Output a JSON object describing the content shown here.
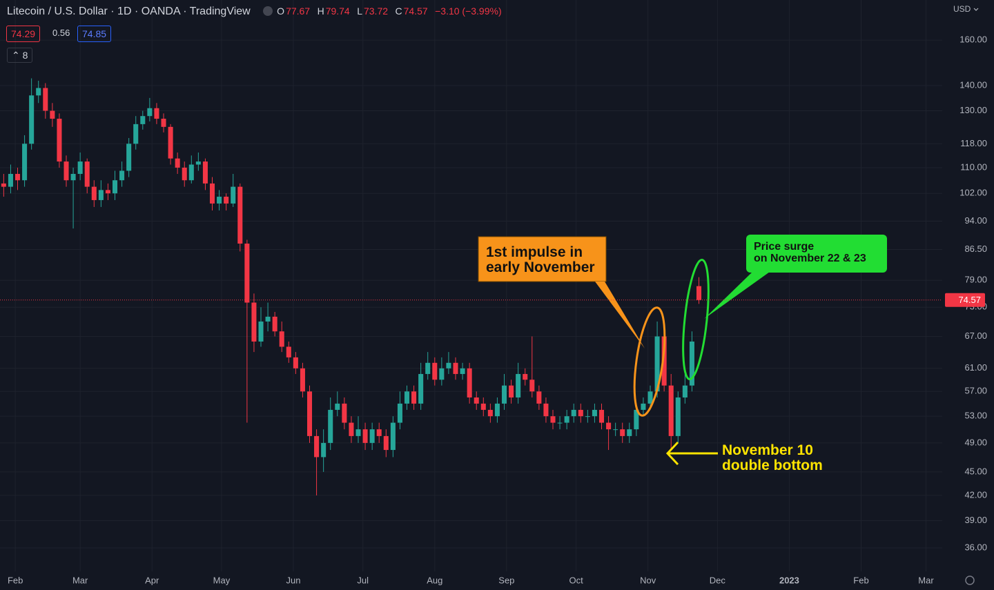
{
  "chart_data": {
    "type": "candlestick",
    "title": "Litecoin / U.S. Dollar · 1D · OANDA · TradingView",
    "ohlc": {
      "open_prefix": "O",
      "open": 77.67,
      "high_prefix": "H",
      "high": 79.74,
      "low_prefix": "L",
      "low": 73.72,
      "close_prefix": "C",
      "close": 74.57,
      "change": "−3.10 (−3.99%)"
    },
    "badges": {
      "bid": "74.29",
      "spread": "0.56",
      "ask": "74.85",
      "indicators": "8"
    },
    "currency": "USD",
    "up_color": "#26a69a",
    "down_color": "#f23645",
    "log_scale": true,
    "grid": true,
    "x": [
      27,
      30,
      33,
      36,
      39,
      42,
      45,
      48,
      51,
      54,
      57,
      60,
      63,
      66,
      69,
      72,
      75,
      78,
      81,
      84,
      87,
      90,
      93,
      96,
      99,
      102,
      105,
      108,
      111,
      114,
      117,
      120,
      123,
      126,
      129,
      132,
      135,
      138,
      141,
      144,
      147,
      150,
      153,
      156,
      159,
      162,
      165,
      168,
      171,
      174,
      177,
      180,
      183,
      186,
      189,
      192,
      195,
      198,
      201,
      204,
      207,
      210,
      213,
      216,
      219,
      222,
      225,
      228,
      231,
      234,
      237,
      240,
      243,
      246,
      249,
      252,
      255,
      258,
      261,
      264,
      267,
      270,
      273,
      276,
      279,
      282,
      285,
      288,
      291,
      294,
      297,
      300,
      303,
      306,
      309,
      312,
      315,
      318,
      321,
      324,
      327
    ],
    "open": [
      105,
      104,
      108,
      106,
      118,
      136,
      139,
      130,
      127,
      112,
      106,
      108,
      112,
      104,
      100,
      103,
      102,
      106,
      109,
      118,
      125,
      128,
      131,
      127,
      124,
      113,
      110,
      106,
      111,
      112,
      105,
      99,
      101,
      99,
      104,
      88,
      74,
      66,
      70,
      71,
      68,
      65,
      63,
      61,
      57,
      50,
      47,
      49,
      54,
      55,
      52,
      50,
      51,
      49,
      51,
      50,
      48,
      52,
      55,
      57,
      55,
      60,
      62,
      59,
      61,
      62,
      60,
      61,
      56,
      55,
      54,
      53,
      55,
      58,
      56,
      60,
      59,
      57,
      55,
      53,
      52,
      52,
      53,
      54,
      53,
      53,
      54,
      52,
      51,
      51,
      50,
      51,
      54,
      55,
      57,
      67,
      58,
      50,
      56,
      58,
      77.67
    ],
    "high": [
      108,
      111,
      110,
      121,
      143,
      142,
      141,
      133,
      129,
      114,
      110,
      115,
      113,
      106,
      106,
      105,
      109,
      112,
      120,
      128,
      130,
      135,
      133,
      129,
      125,
      115,
      112,
      114,
      115,
      113,
      107,
      103,
      102,
      108,
      105,
      89,
      76,
      73,
      74,
      72,
      70,
      66,
      64,
      62,
      58,
      51,
      51,
      56,
      57,
      56,
      53,
      53,
      52,
      52,
      52,
      51,
      53,
      57,
      58,
      58,
      62,
      64,
      63,
      63,
      64,
      63,
      62,
      62,
      57,
      56,
      55,
      56,
      60,
      59,
      62,
      61,
      67,
      58,
      56,
      54,
      53,
      54,
      55,
      55,
      54,
      55,
      55,
      53,
      52,
      52,
      52,
      55,
      56,
      58,
      70,
      68,
      60,
      57,
      60,
      68,
      79.74
    ],
    "low": [
      101,
      102,
      103,
      104,
      116,
      133,
      127,
      124,
      110,
      104,
      92,
      106,
      102,
      98,
      98,
      100,
      100,
      104,
      107,
      116,
      123,
      126,
      125,
      122,
      111,
      108,
      104,
      105,
      109,
      103,
      97,
      97,
      97,
      98,
      86,
      52,
      64,
      65,
      68,
      67,
      64,
      62,
      60,
      56,
      49,
      42,
      45,
      48,
      53,
      51,
      49,
      49,
      48,
      48,
      49,
      47,
      47,
      51,
      54,
      54,
      54,
      59,
      58,
      58,
      60,
      59,
      59,
      55,
      54,
      53,
      52,
      52,
      54,
      55,
      55,
      58,
      56,
      54,
      52,
      51,
      51,
      51,
      52,
      52,
      52,
      52,
      51,
      48,
      50,
      49,
      49,
      50,
      53,
      54,
      56,
      57,
      48,
      49,
      55,
      57,
      73.72
    ],
    "close": [
      104,
      108,
      106,
      118,
      136,
      139,
      130,
      127,
      112,
      106,
      108,
      112,
      104,
      100,
      103,
      102,
      106,
      109,
      118,
      125,
      128,
      131,
      127,
      124,
      113,
      110,
      106,
      111,
      112,
      105,
      99,
      101,
      99,
      104,
      88,
      74,
      66,
      70,
      71,
      68,
      65,
      63,
      61,
      57,
      50,
      47,
      49,
      54,
      55,
      52,
      50,
      51,
      49,
      51,
      50,
      48,
      52,
      55,
      57,
      55,
      60,
      62,
      59,
      61,
      62,
      60,
      61,
      56,
      55,
      54,
      53,
      55,
      58,
      56,
      60,
      59,
      57,
      55,
      53,
      52,
      52,
      53,
      54,
      53,
      53,
      54,
      52,
      51,
      51,
      50,
      51,
      54,
      55,
      57,
      67,
      58,
      50,
      56,
      58,
      66,
      74.57
    ],
    "xlim": [
      25.4,
      432
    ],
    "xticks": [
      {
        "value": 32,
        "label": "Feb"
      },
      {
        "value": 60,
        "label": "Mar"
      },
      {
        "value": 91,
        "label": "Apr"
      },
      {
        "value": 121,
        "label": "May"
      },
      {
        "value": 152,
        "label": "Jun"
      },
      {
        "value": 182,
        "label": "Jul"
      },
      {
        "value": 213,
        "label": "Aug"
      },
      {
        "value": 244,
        "label": "Sep"
      },
      {
        "value": 274,
        "label": "Oct"
      },
      {
        "value": 305,
        "label": "Nov"
      },
      {
        "value": 335,
        "label": "Dec"
      },
      {
        "value": 366,
        "label": "2023"
      },
      {
        "value": 397,
        "label": "Feb"
      },
      {
        "value": 425,
        "label": "Mar"
      }
    ],
    "ylim": [
      33.6,
      180
    ],
    "yticks": [
      {
        "value": 160,
        "label": "160.00"
      },
      {
        "value": 140,
        "label": "140.00"
      },
      {
        "value": 130,
        "label": "130.00"
      },
      {
        "value": 118,
        "label": "118.00"
      },
      {
        "value": 110,
        "label": "110.00"
      },
      {
        "value": 102,
        "label": "102.00"
      },
      {
        "value": 94,
        "label": "94.00"
      },
      {
        "value": 86.5,
        "label": "86.50"
      },
      {
        "value": 79,
        "label": "79.00"
      },
      {
        "value": 73,
        "label": "73.00"
      },
      {
        "value": 67,
        "label": "67.00"
      },
      {
        "value": 61,
        "label": "61.00"
      },
      {
        "value": 57,
        "label": "57.00"
      },
      {
        "value": 53,
        "label": "53.00"
      },
      {
        "value": 49,
        "label": "49.00"
      },
      {
        "value": 45,
        "label": "45.00"
      },
      {
        "value": 42,
        "label": "42.00"
      },
      {
        "value": 39,
        "label": "39.00"
      },
      {
        "value": 36,
        "label": "36.00"
      }
    ],
    "annotations": [
      {
        "lines": [
          "1st impulse in",
          "early November"
        ],
        "color": "#f7931a"
      },
      {
        "lines": [
          "Price surge",
          "on November 22 & 23"
        ],
        "color": "#22dd33"
      },
      {
        "lines": [
          "November 10",
          "double bottom"
        ],
        "color": "#ffe400"
      }
    ]
  }
}
